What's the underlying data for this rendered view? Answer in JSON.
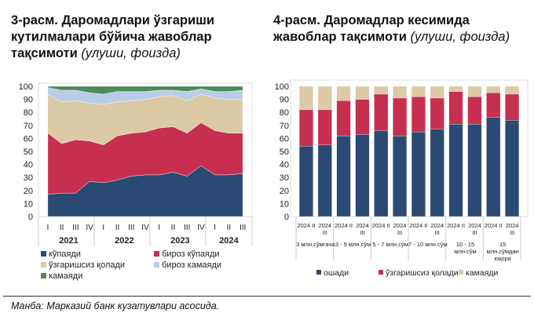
{
  "left": {
    "title": "3-расм. Даромадлари ўзгариши кутилмалари бўйича жавоблар тақсимоти",
    "subtitle": "(улуши, фоизда)"
  },
  "right": {
    "title": "4-расм. Даромадлар кесимида жавоблар тақсимоти",
    "subtitle": "(улуши, фоизда)"
  },
  "source": "Манба: Марказий банк кузатувлари асосида.",
  "chart_data": [
    {
      "type": "area",
      "stacked": true,
      "ylim": [
        0,
        100
      ],
      "yticks": [
        0,
        10,
        20,
        30,
        40,
        50,
        60,
        70,
        80,
        90,
        100
      ],
      "grid": false,
      "legend": "bottom",
      "categories": [
        "I",
        "II",
        "III",
        "IV",
        "I",
        "II",
        "III",
        "IV",
        "I",
        "II",
        "III",
        "IV",
        "I",
        "II",
        "III"
      ],
      "groups": [
        "2021",
        "2022",
        "2023",
        "2024"
      ],
      "series": [
        {
          "name": "кўпаяди",
          "color": "#2b4a73",
          "values": [
            17,
            18,
            18,
            27,
            26,
            28,
            31,
            32,
            32,
            34,
            31,
            39,
            32,
            32,
            33
          ]
        },
        {
          "name": "бироз кўпаяди",
          "color": "#c62f4f",
          "values": [
            47,
            38,
            41,
            31,
            29,
            34,
            33,
            33,
            36,
            35,
            33,
            33,
            34,
            32,
            31
          ]
        },
        {
          "name": "ўзгаришсиз қолади",
          "color": "#dcc9a6",
          "values": [
            30,
            32,
            30,
            29,
            31,
            26,
            25,
            25,
            24,
            24,
            25,
            22,
            25,
            26,
            26
          ]
        },
        {
          "name": "бироз камаяди",
          "color": "#b8cde6",
          "values": [
            5,
            9,
            8,
            8,
            8,
            8,
            7,
            6,
            5,
            4,
            7,
            4,
            5,
            6,
            7
          ]
        },
        {
          "name": "камаяди",
          "color": "#4e8a5a",
          "values": [
            1,
            3,
            3,
            5,
            6,
            4,
            4,
            4,
            3,
            3,
            4,
            2,
            4,
            4,
            3
          ]
        }
      ]
    },
    {
      "type": "bar",
      "stacked": true,
      "ylim": [
        0,
        100
      ],
      "yticks": [
        0,
        10,
        20,
        30,
        40,
        50,
        60,
        70,
        80,
        90,
        100
      ],
      "grid": false,
      "legend": "bottom",
      "categories": [
        "2024 II",
        "2024 III",
        "2024 II",
        "2024 III",
        "2024 II",
        "2024 III",
        "2024 II",
        "2024 III",
        "2024 II",
        "2024 III",
        "2024 II",
        "2024 III"
      ],
      "groups": [
        "3 млн.сўмгача",
        "3 - 5 млн.сўм",
        "5 - 7 млн.сўм",
        "7 - 10 млн.сўм",
        "10 - 15 млн.сўм",
        "15 млн.сўмдан юқори"
      ],
      "series": [
        {
          "name": "ошади",
          "color": "#2b4a73",
          "values": [
            54,
            55,
            62,
            63,
            66,
            62,
            65,
            67,
            71,
            71,
            76,
            74
          ]
        },
        {
          "name": "ўзгаришсиз қолади",
          "color": "#c62f4f",
          "values": [
            28,
            27,
            27,
            27,
            28,
            29,
            27,
            24,
            25,
            21,
            19,
            20
          ]
        },
        {
          "name": "камаяди",
          "color": "#dcc9a6",
          "values": [
            18,
            18,
            11,
            10,
            6,
            9,
            8,
            9,
            4,
            8,
            5,
            6
          ]
        }
      ]
    }
  ]
}
